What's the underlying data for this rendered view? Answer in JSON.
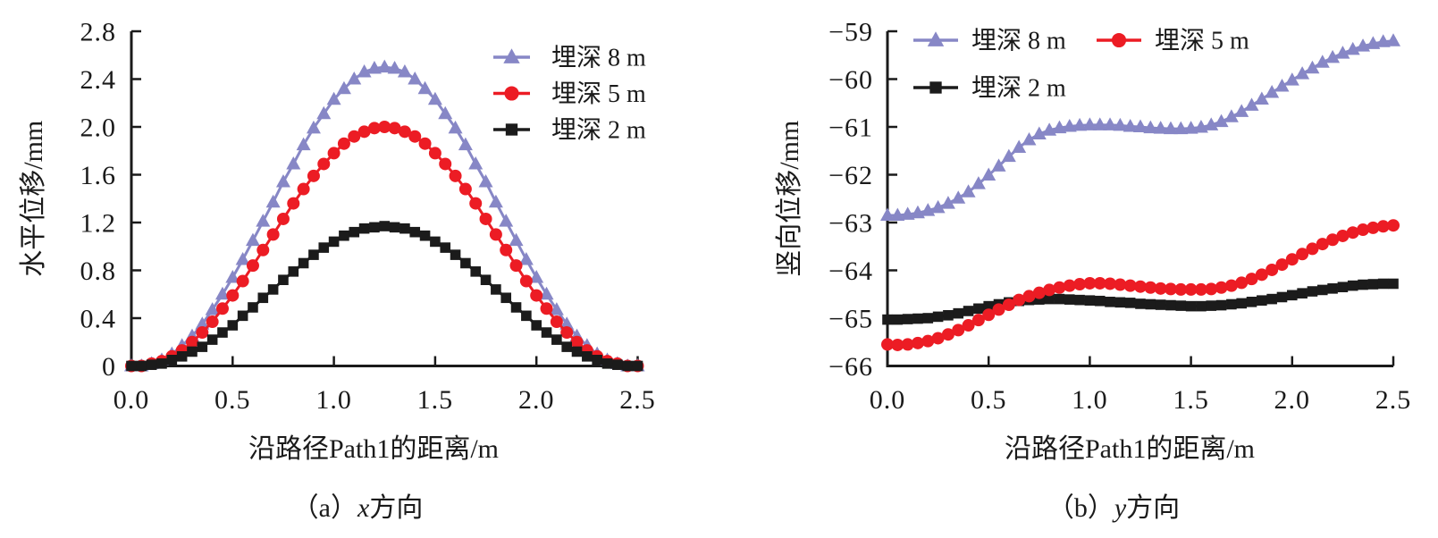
{
  "figure": {
    "background": "#ffffff",
    "axis_color": "#1a1a1a"
  },
  "chart_data": [
    {
      "id": "a",
      "type": "line",
      "caption": {
        "prefix": "（a）",
        "variable": "x",
        "suffix": "方向"
      },
      "xlabel": "沿路径Path1的距离/m",
      "ylabel": "水平位移/mm",
      "xlim": [
        0,
        2.5
      ],
      "ylim": [
        0,
        2.8
      ],
      "xtick_values": [
        0,
        0.5,
        1.0,
        1.5,
        2.0,
        2.5
      ],
      "xtick_labels": [
        "0.0",
        "0.5",
        "1.0",
        "1.5",
        "2.0",
        "2.5"
      ],
      "ytick_values": [
        0,
        0.4,
        0.8,
        1.2,
        1.6,
        2.0,
        2.4,
        2.8
      ],
      "ytick_labels": [
        "0",
        "0.4",
        "0.8",
        "1.2",
        "1.6",
        "2.0",
        "2.4",
        "2.8"
      ],
      "grid": false,
      "legend_position": "inside top-right, one column",
      "legend_slots": [
        [
          0
        ],
        [
          1
        ],
        [
          2
        ]
      ],
      "x": [
        0,
        0.05,
        0.1,
        0.15,
        0.2,
        0.25,
        0.3,
        0.35,
        0.4,
        0.45,
        0.5,
        0.55,
        0.6,
        0.65,
        0.7,
        0.75,
        0.8,
        0.85,
        0.9,
        0.95,
        1,
        1.05,
        1.1,
        1.15,
        1.2,
        1.25,
        1.3,
        1.35,
        1.4,
        1.45,
        1.5,
        1.55,
        1.6,
        1.65,
        1.7,
        1.75,
        1.8,
        1.85,
        1.9,
        1.95,
        2,
        2.05,
        2.1,
        2.15,
        2.2,
        2.25,
        2.3,
        2.35,
        2.4,
        2.45,
        2.5
      ],
      "series": [
        {
          "name": "埋深 8 m",
          "slug": "depth-8m",
          "marker": "triangle",
          "color": "#8787c6",
          "values": [
            0,
            0,
            0.02,
            0.05,
            0.1,
            0.17,
            0.25,
            0.35,
            0.47,
            0.6,
            0.74,
            0.89,
            1.05,
            1.21,
            1.37,
            1.54,
            1.69,
            1.85,
            1.99,
            2.11,
            2.23,
            2.32,
            2.4,
            2.46,
            2.49,
            2.5,
            2.49,
            2.46,
            2.4,
            2.32,
            2.23,
            2.11,
            1.99,
            1.85,
            1.69,
            1.54,
            1.37,
            1.21,
            1.05,
            0.89,
            0.74,
            0.6,
            0.47,
            0.35,
            0.25,
            0.17,
            0.1,
            0.05,
            0.02,
            0,
            0
          ]
        },
        {
          "name": "埋深 5 m",
          "slug": "depth-5m",
          "marker": "circle",
          "color": "#ec1c24",
          "values": [
            0,
            0,
            0.02,
            0.04,
            0.08,
            0.13,
            0.2,
            0.28,
            0.37,
            0.48,
            0.59,
            0.71,
            0.84,
            0.97,
            1.1,
            1.23,
            1.36,
            1.48,
            1.59,
            1.69,
            1.78,
            1.86,
            1.92,
            1.96,
            1.99,
            2,
            1.99,
            1.96,
            1.92,
            1.86,
            1.78,
            1.69,
            1.59,
            1.48,
            1.36,
            1.23,
            1.1,
            0.97,
            0.84,
            0.71,
            0.59,
            0.48,
            0.37,
            0.28,
            0.2,
            0.13,
            0.08,
            0.04,
            0.02,
            0,
            0
          ]
        },
        {
          "name": "埋深 2 m",
          "slug": "depth-2m",
          "marker": "square",
          "color": "#1b1b1b",
          "values": [
            0,
            0,
            0.01,
            0.02,
            0.05,
            0.08,
            0.12,
            0.16,
            0.22,
            0.28,
            0.34,
            0.42,
            0.49,
            0.57,
            0.64,
            0.72,
            0.79,
            0.86,
            0.93,
            0.99,
            1.04,
            1.09,
            1.12,
            1.15,
            1.16,
            1.17,
            1.16,
            1.15,
            1.12,
            1.09,
            1.04,
            0.99,
            0.93,
            0.86,
            0.79,
            0.72,
            0.64,
            0.57,
            0.49,
            0.42,
            0.34,
            0.28,
            0.22,
            0.16,
            0.12,
            0.08,
            0.05,
            0.02,
            0.01,
            0,
            0
          ]
        }
      ]
    },
    {
      "id": "b",
      "type": "line",
      "caption": {
        "prefix": "（b）",
        "variable": "y",
        "suffix": "方向"
      },
      "xlabel": "沿路径Path1的距离/m",
      "ylabel": "竖向位移/mm",
      "xlim": [
        0,
        2.5
      ],
      "ylim": [
        -66,
        -59
      ],
      "xtick_values": [
        0,
        0.5,
        1.0,
        1.5,
        2.0,
        2.5
      ],
      "xtick_labels": [
        "0.0",
        "0.5",
        "1.0",
        "1.5",
        "2.0",
        "2.5"
      ],
      "ytick_values": [
        -66,
        -65,
        -64,
        -63,
        -62,
        -61,
        -60,
        -59
      ],
      "ytick_labels": [
        "−66",
        "−65",
        "−64",
        "−63",
        "−62",
        "−61",
        "−60",
        "−59"
      ],
      "grid": false,
      "legend_position": "inside top-left, two columns",
      "legend_slots": [
        [
          0,
          2
        ],
        [
          1
        ]
      ],
      "x": [
        0,
        0.05,
        0.1,
        0.15,
        0.2,
        0.25,
        0.3,
        0.35,
        0.4,
        0.45,
        0.5,
        0.55,
        0.6,
        0.65,
        0.7,
        0.75,
        0.8,
        0.85,
        0.9,
        0.95,
        1,
        1.05,
        1.1,
        1.15,
        1.2,
        1.25,
        1.3,
        1.35,
        1.4,
        1.45,
        1.5,
        1.55,
        1.6,
        1.65,
        1.7,
        1.75,
        1.8,
        1.85,
        1.9,
        1.95,
        2,
        2.05,
        2.1,
        2.15,
        2.2,
        2.25,
        2.3,
        2.35,
        2.4,
        2.45,
        2.5
      ],
      "series": [
        {
          "name": "埋深 8 m",
          "slug": "depth-8m",
          "marker": "triangle",
          "color": "#8787c6",
          "values": [
            -62.85,
            -62.85,
            -62.83,
            -62.8,
            -62.75,
            -62.69,
            -62.6,
            -62.49,
            -62.36,
            -62.19,
            -62.01,
            -61.82,
            -61.62,
            -61.43,
            -61.27,
            -61.15,
            -61.07,
            -61.02,
            -60.99,
            -60.97,
            -60.96,
            -60.96,
            -60.96,
            -60.97,
            -60.99,
            -61,
            -61.02,
            -61.03,
            -61.04,
            -61.04,
            -61.03,
            -61.01,
            -60.96,
            -60.89,
            -60.79,
            -60.68,
            -60.55,
            -60.42,
            -60.28,
            -60.15,
            -60.02,
            -59.89,
            -59.77,
            -59.65,
            -59.55,
            -59.46,
            -59.38,
            -59.31,
            -59.26,
            -59.22,
            -59.2
          ]
        },
        {
          "name": "埋深 2 m",
          "slug": "depth-2m",
          "marker": "square",
          "color": "#1b1b1b",
          "values": [
            -65.03,
            -65.03,
            -65.02,
            -65.01,
            -65,
            -64.97,
            -64.94,
            -64.9,
            -64.85,
            -64.8,
            -64.75,
            -64.71,
            -64.67,
            -64.64,
            -64.62,
            -64.61,
            -64.6,
            -64.6,
            -64.61,
            -64.62,
            -64.63,
            -64.64,
            -64.66,
            -64.67,
            -64.68,
            -64.7,
            -64.71,
            -64.72,
            -64.73,
            -64.74,
            -64.75,
            -64.75,
            -64.74,
            -64.73,
            -64.71,
            -64.69,
            -64.66,
            -64.63,
            -64.6,
            -64.56,
            -64.52,
            -64.48,
            -64.44,
            -64.41,
            -64.38,
            -64.35,
            -64.32,
            -64.3,
            -64.29,
            -64.28,
            -64.28
          ]
        },
        {
          "name": "埋深 5 m",
          "slug": "depth-5m",
          "marker": "circle",
          "color": "#ec1c24",
          "values": [
            -65.55,
            -65.56,
            -65.55,
            -65.52,
            -65.48,
            -65.42,
            -65.34,
            -65.25,
            -65.15,
            -65.04,
            -64.93,
            -64.82,
            -64.72,
            -64.62,
            -64.54,
            -64.47,
            -64.41,
            -64.36,
            -64.32,
            -64.29,
            -64.27,
            -64.27,
            -64.28,
            -64.3,
            -64.32,
            -64.34,
            -64.36,
            -64.38,
            -64.39,
            -64.4,
            -64.4,
            -64.4,
            -64.39,
            -64.36,
            -64.32,
            -64.26,
            -64.18,
            -64.09,
            -63.99,
            -63.88,
            -63.77,
            -63.66,
            -63.55,
            -63.45,
            -63.36,
            -63.28,
            -63.21,
            -63.15,
            -63.11,
            -63.08,
            -63.06
          ]
        }
      ]
    }
  ]
}
